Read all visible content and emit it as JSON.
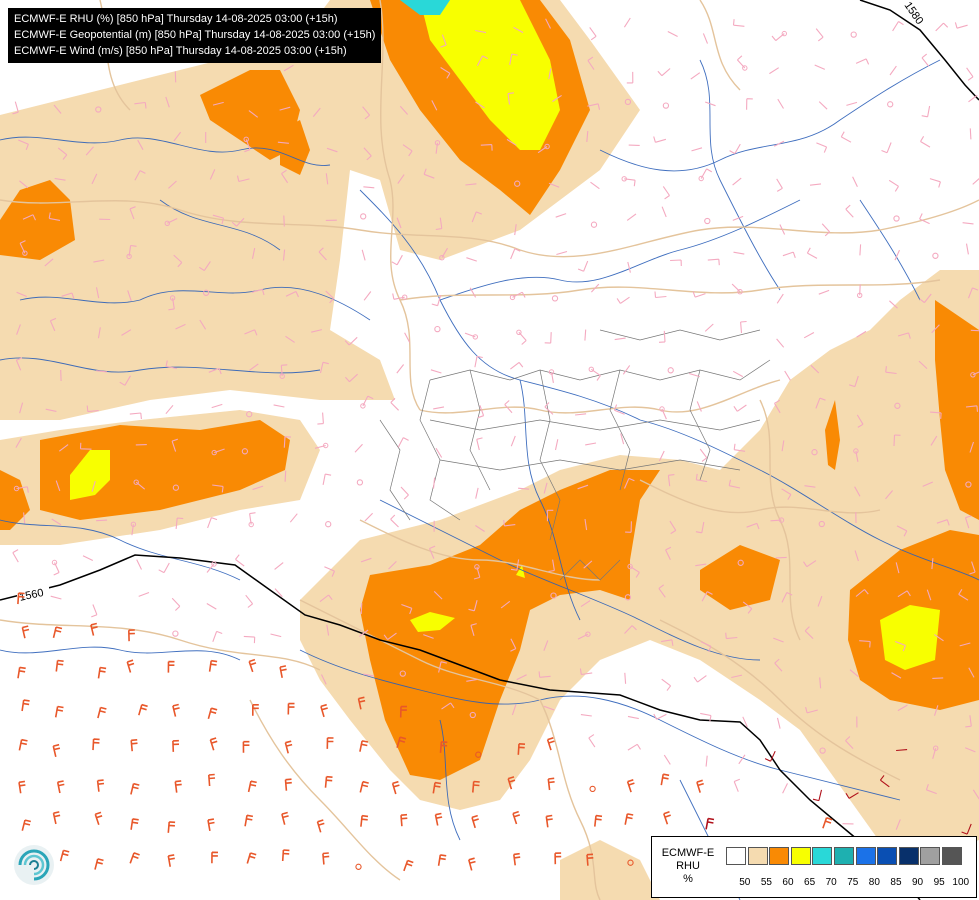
{
  "header": {
    "lines": [
      "ECMWF-E RHU (%) [850 hPa] Thursday 14-08-2025 03:00 (+15h)",
      "ECMWF-E Geopotential (m) [850 hPa] Thursday 14-08-2025 03:00 (+15h)",
      "ECMWF-E Wind (m/s) [850 hPa] Thursday 14-08-2025 03:00 (+15h)"
    ]
  },
  "contours": {
    "labels": [
      "1560",
      "1580"
    ]
  },
  "legend": {
    "title_lines": [
      "ECMWF-E",
      "RHU",
      "%"
    ],
    "ticks": [
      "50",
      "55",
      "60",
      "65",
      "70",
      "75",
      "80",
      "85",
      "90",
      "95",
      "100"
    ],
    "colors": [
      "#ffffff",
      "#f5dbb0",
      "#f98a04",
      "#f8ff00",
      "#29d8d8",
      "#1eb0b0",
      "#1b72e8",
      "#0a4fb3",
      "#08306b",
      "#a0a0a0",
      "#555555"
    ]
  },
  "colors": {
    "rhu_55": "#f5dbb0",
    "rhu_60": "#f98a04",
    "rhu_65": "#f8ff00",
    "rhu_70": "#29d8d8",
    "barb_light": "#f4a9c0",
    "barb_medium": "#e8572a",
    "barb_strong": "#b0101a",
    "rivers": "#2b5fb8",
    "borders_country": "#e4c49c",
    "borders_region": "#777777",
    "contour": "#000000"
  },
  "logo": {
    "icon": "ecmwf-logo-icon"
  }
}
